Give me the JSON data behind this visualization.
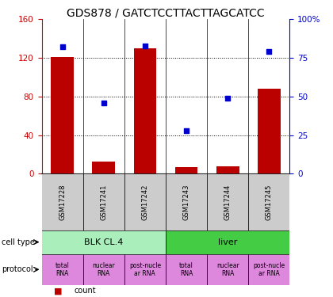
{
  "title": "GDS878 / GATCTCCTTACTTAGCATCC",
  "samples": [
    "GSM17228",
    "GSM17241",
    "GSM17242",
    "GSM17243",
    "GSM17244",
    "GSM17245"
  ],
  "counts": [
    121,
    13,
    130,
    7,
    8,
    88
  ],
  "percentiles": [
    82,
    46,
    83,
    28,
    49,
    79
  ],
  "ylim_left": [
    0,
    160
  ],
  "ylim_right": [
    0,
    100
  ],
  "yticks_left": [
    0,
    40,
    80,
    120,
    160
  ],
  "yticks_right": [
    0,
    25,
    50,
    75,
    100
  ],
  "bar_color": "#bb0000",
  "dot_color": "#0000cc",
  "cell_type_groups": [
    {
      "label": "BLK CL.4",
      "span": [
        0,
        2
      ],
      "color": "#aaeebb"
    },
    {
      "label": "liver",
      "span": [
        3,
        5
      ],
      "color": "#44cc44"
    }
  ],
  "protocols": [
    "total\nRNA",
    "nuclear\nRNA",
    "post-nucle\nar RNA",
    "total\nRNA",
    "nuclear\nRNA",
    "post-nucle\nar RNA"
  ],
  "protocol_color": "#dd88dd",
  "sample_bg_color": "#cccccc",
  "left_axis_color": "#cc0000",
  "right_axis_color": "#0000cc",
  "title_fontsize": 10,
  "tick_fontsize": 7.5,
  "legend_fontsize": 7
}
